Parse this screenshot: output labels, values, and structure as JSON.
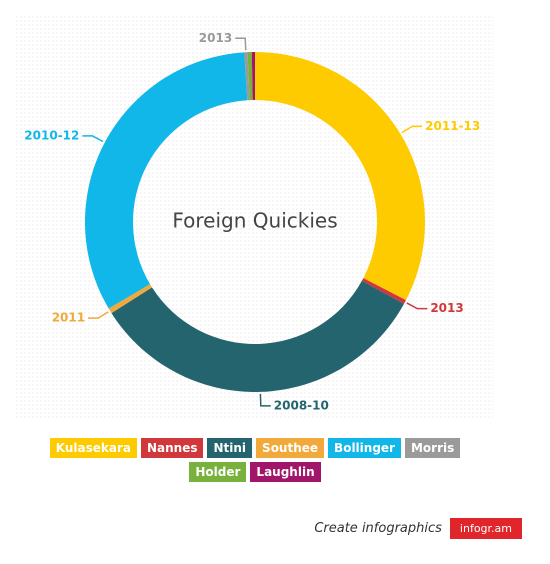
{
  "chart_data": {
    "type": "donut",
    "title": "Foreign Quickies",
    "categories": [
      "Kulasekara",
      "Nannes",
      "Ntini",
      "Southee",
      "Bollinger",
      "Morris",
      "Holder",
      "Laughlin"
    ],
    "series": [
      {
        "name": "Foreign Quickies",
        "values": [
          32.6,
          0.4,
          33,
          0.5,
          32.5,
          0.3,
          0.4,
          0.3
        ],
        "colors": [
          "#fecb00",
          "#d0383b",
          "#23646f",
          "#f0a93a",
          "#11b7e8",
          "#9a9a9a",
          "#79b13d",
          "#a1166a"
        ],
        "slice_labels": [
          "2011-13",
          "2013",
          "2008-10",
          "2011",
          "2010-12",
          "2013",
          null,
          null
        ]
      }
    ]
  },
  "footer": {
    "text": "Create infographics",
    "brand": "infogr.am"
  }
}
